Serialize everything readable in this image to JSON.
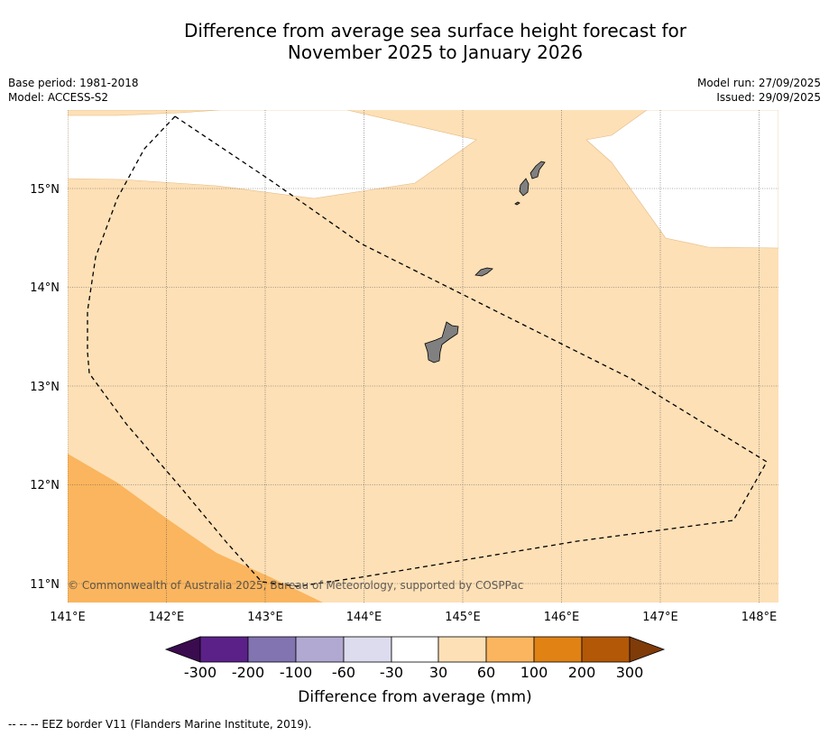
{
  "title": {
    "line1": "Difference from average sea surface height forecast for",
    "line2": "November 2025 to January 2026"
  },
  "meta": {
    "base_period": "Base period: 1981-2018",
    "model": "Model: ACCESS-S2",
    "model_run": "Model run: 27/09/2025",
    "issued": "Issued: 29/09/2025"
  },
  "map": {
    "lon_labels": [
      "141°E",
      "142°E",
      "143°E",
      "144°E",
      "145°E",
      "146°E",
      "147°E",
      "148°E"
    ],
    "lat_labels": [
      "15°N",
      "14°N",
      "13°N",
      "12°N",
      "11°N"
    ],
    "copyright": "© Commonwealth of Australia 2025, Bureau of Meteorology, supported by COSPPac",
    "colors": {
      "bin_30_60": "#fde0b6",
      "bin_60_100": "#fab55e",
      "land": "#808080",
      "no_change": "#ffffff"
    }
  },
  "colorbar": {
    "tick_labels": [
      "-300",
      "-200",
      "-100",
      "-60",
      "-30",
      "30",
      "60",
      "100",
      "200",
      "300"
    ],
    "title": "Difference from average (mm)",
    "colors": [
      "#3b0b4f",
      "#5b2189",
      "#8273b1",
      "#b1a9d1",
      "#dcdcee",
      "#ffffff",
      "#fde0b6",
      "#fab55e",
      "#e08214",
      "#b35806",
      "#7f3b08"
    ]
  },
  "footer": {
    "legend": "--  --  -- EEZ border V11 (Flanders Marine Institute, 2019)."
  }
}
